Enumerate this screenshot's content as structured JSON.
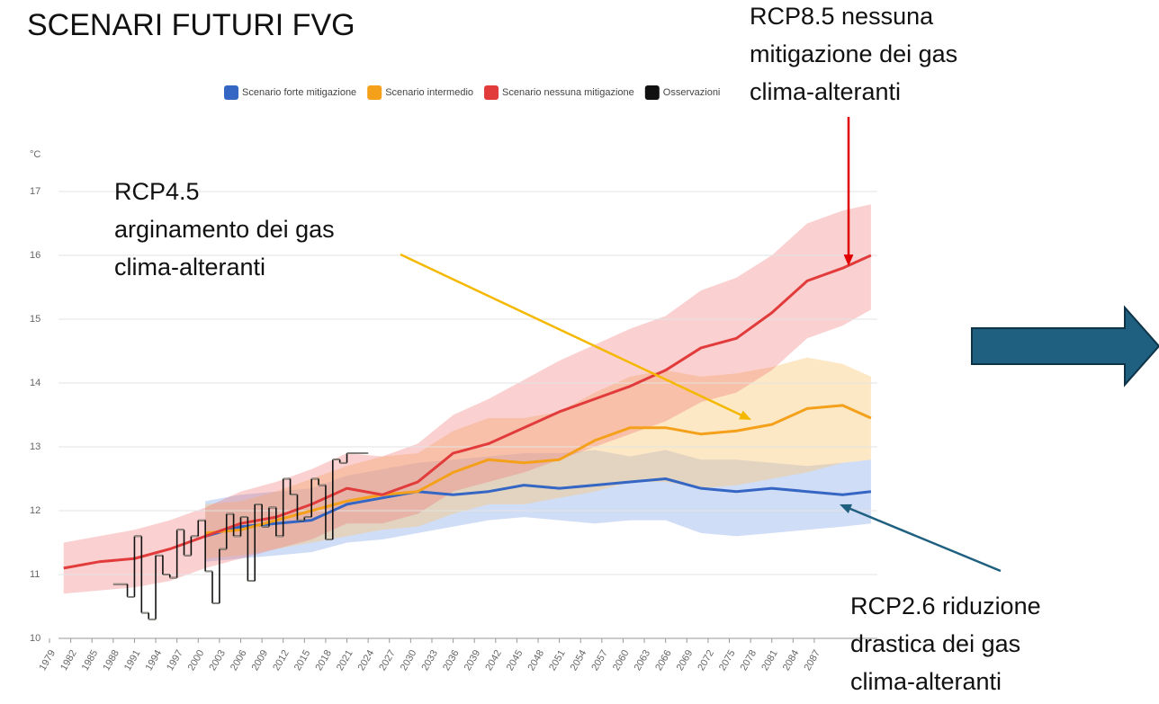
{
  "chart_data": {
    "type": "line",
    "title": "SCENARI FUTURI FVG",
    "ylabel": "°C",
    "x": [
      1981,
      1986,
      1991,
      1996,
      2001,
      2006,
      2011,
      2016,
      2021,
      2026,
      2031,
      2036,
      2041,
      2046,
      2051,
      2056,
      2061,
      2066,
      2071,
      2076,
      2081,
      2086,
      2091,
      2095
    ],
    "series": [
      {
        "name": "Scenario forte mitigazione",
        "color": "#3566c4",
        "band_color": "rgba(150,180,235,0.45)",
        "values": [
          null,
          null,
          null,
          null,
          11.6,
          11.75,
          11.8,
          11.85,
          12.1,
          12.2,
          12.3,
          12.25,
          12.3,
          12.4,
          12.35,
          12.4,
          12.45,
          12.5,
          12.35,
          12.3,
          12.35,
          12.3,
          12.25,
          12.3
        ],
        "lower": [
          null,
          null,
          null,
          null,
          11.2,
          11.25,
          11.3,
          11.35,
          11.5,
          11.55,
          11.65,
          11.75,
          11.85,
          11.9,
          11.85,
          11.8,
          11.85,
          11.85,
          11.65,
          11.6,
          11.65,
          11.7,
          11.75,
          11.8
        ],
        "upper": [
          null,
          null,
          null,
          null,
          12.15,
          12.25,
          12.3,
          12.35,
          12.55,
          12.65,
          12.75,
          12.8,
          12.85,
          12.9,
          12.9,
          12.95,
          12.85,
          12.95,
          12.8,
          12.8,
          12.75,
          12.7,
          12.75,
          12.8
        ]
      },
      {
        "name": "Scenario intermedio",
        "color": "#f5a01a",
        "band_color": "rgba(250,200,120,0.42)",
        "values": [
          null,
          null,
          null,
          null,
          11.65,
          11.7,
          11.85,
          12.0,
          12.15,
          12.25,
          12.3,
          12.6,
          12.8,
          12.75,
          12.8,
          13.1,
          13.3,
          13.3,
          13.2,
          13.25,
          13.35,
          13.6,
          13.65,
          13.45
        ],
        "lower": [
          null,
          null,
          null,
          null,
          11.25,
          11.3,
          11.4,
          11.5,
          11.6,
          11.7,
          11.75,
          11.95,
          12.1,
          12.1,
          12.2,
          12.3,
          12.45,
          12.45,
          12.35,
          12.4,
          12.5,
          12.6,
          12.75,
          12.8
        ],
        "upper": [
          null,
          null,
          null,
          null,
          12.1,
          12.15,
          12.3,
          12.5,
          12.7,
          12.85,
          12.9,
          13.25,
          13.45,
          13.45,
          13.55,
          13.85,
          14.1,
          14.2,
          14.1,
          14.15,
          14.25,
          14.4,
          14.3,
          14.1
        ]
      },
      {
        "name": "Scenario nessuna mitigazione",
        "color": "#e23b3b",
        "band_color": "rgba(238,110,110,0.32)",
        "values": [
          11.1,
          11.2,
          11.25,
          11.4,
          11.6,
          11.8,
          11.9,
          12.1,
          12.35,
          12.25,
          12.45,
          12.9,
          13.05,
          13.3,
          13.55,
          13.75,
          13.95,
          14.2,
          14.55,
          14.7,
          15.1,
          15.6,
          15.8,
          16.0
        ],
        "lower": [
          10.7,
          10.75,
          10.8,
          10.9,
          11.1,
          11.25,
          11.4,
          11.55,
          11.8,
          11.8,
          11.95,
          12.3,
          12.45,
          12.6,
          12.8,
          13.0,
          13.2,
          13.4,
          13.7,
          13.85,
          14.2,
          14.7,
          14.9,
          15.15
        ],
        "upper": [
          11.5,
          11.6,
          11.7,
          11.85,
          12.05,
          12.3,
          12.45,
          12.65,
          12.9,
          12.85,
          13.05,
          13.5,
          13.75,
          14.05,
          14.35,
          14.6,
          14.85,
          15.05,
          15.45,
          15.65,
          16.0,
          16.5,
          16.7,
          16.8
        ]
      },
      {
        "name": "Osservazioni",
        "color": "#111111",
        "step": true,
        "x": [
          1988,
          1989,
          1990,
          1991,
          1992,
          1993,
          1994,
          1995,
          1996,
          1997,
          1998,
          1999,
          2000,
          2001,
          2002,
          2003,
          2004,
          2005,
          2006,
          2007,
          2008,
          2009,
          2010,
          2011,
          2012,
          2013,
          2014,
          2015,
          2016,
          2017,
          2018,
          2019,
          2020,
          2021,
          2022,
          2023
        ],
        "values": [
          10.85,
          10.85,
          10.65,
          11.6,
          10.4,
          10.3,
          11.3,
          11.0,
          10.95,
          11.7,
          11.3,
          11.6,
          11.85,
          11.05,
          10.55,
          11.4,
          11.95,
          11.6,
          11.9,
          10.9,
          12.1,
          11.75,
          12.05,
          11.6,
          12.5,
          12.25,
          11.85,
          11.9,
          12.5,
          12.4,
          11.55,
          12.8,
          12.75,
          12.9,
          12.9,
          12.9
        ]
      }
    ],
    "xlim": [
      1976,
      2098
    ],
    "ylim": [
      10,
      17.5
    ],
    "xticks": [
      1979,
      1982,
      1985,
      1988,
      1991,
      1994,
      1997,
      2000,
      2003,
      2006,
      2009,
      2012,
      2015,
      2018,
      2021,
      2024,
      2027,
      2030,
      2033,
      2036,
      2039,
      2042,
      2045,
      2048,
      2051,
      2054,
      2057,
      2060,
      2063,
      2066,
      2069,
      2072,
      2075,
      2078,
      2081,
      2084,
      2087
    ],
    "yticks": [
      10,
      11,
      12,
      13,
      14,
      15,
      16,
      17
    ],
    "grid": true,
    "legend": "top",
    "annotations": [
      {
        "lines": [
          "RCP8.5 nessuna",
          "mitigazione dei gas",
          "clima-alteranti"
        ],
        "color": "#e00000"
      },
      {
        "lines": [
          "RCP4.5",
          "arginamento dei gas",
          "clima-alteranti"
        ],
        "color": "#f5b800"
      },
      {
        "lines": [
          "RCP2.6 riduzione",
          "drastica dei gas",
          "clima-alteranti"
        ],
        "color": "#1f5f7f"
      }
    ]
  }
}
